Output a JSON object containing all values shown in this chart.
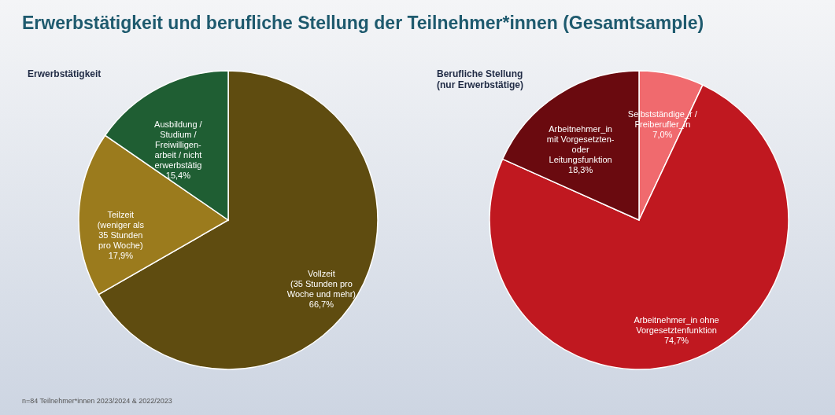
{
  "chart_data": [
    {
      "type": "other",
      "title": "Erwerbstätigkeit und berufliche Stellung der Teilnehmer*innen (Gesamtsample)",
      "annotations": [
        "n=84 Teilnehmer*innen 2023/2024 & 2022/2023"
      ]
    },
    {
      "type": "pie",
      "title": "Erwerbstätigkeit",
      "categories": [
        "Vollzeit\n(35 Stunden pro\nWoche und mehr)",
        "Teilzeit\n(weniger als\n35 Stunden\npro Woche)",
        "Ausbildung /\nStudium /\nFreiwilligen-\narbeit / nicht\nerwerbstätig"
      ],
      "values": [
        66.7,
        17.9,
        15.4
      ],
      "colors": [
        "#5f4c10",
        "#9b7b1d",
        "#1f5e33"
      ],
      "value_labels": [
        "66,7%",
        "17,9%",
        "15,4%"
      ]
    },
    {
      "type": "pie",
      "title": "Berufliche Stellung\n(nur Erwerbstätige)",
      "categories": [
        "Selbstständige_r /\nFreiberufler_in",
        "Arbeitnehmer_in ohne\nVorgesetztenfunktion",
        "Arbeitnehmer_in\nmit Vorgesetzten-\noder\nLeitungsfunktion"
      ],
      "values": [
        7.0,
        74.7,
        18.3
      ],
      "colors": [
        "#f06a6e",
        "#c01820",
        "#6a0a0f"
      ],
      "value_labels": [
        "7,0%",
        "74,7%",
        "18,3%"
      ]
    }
  ]
}
